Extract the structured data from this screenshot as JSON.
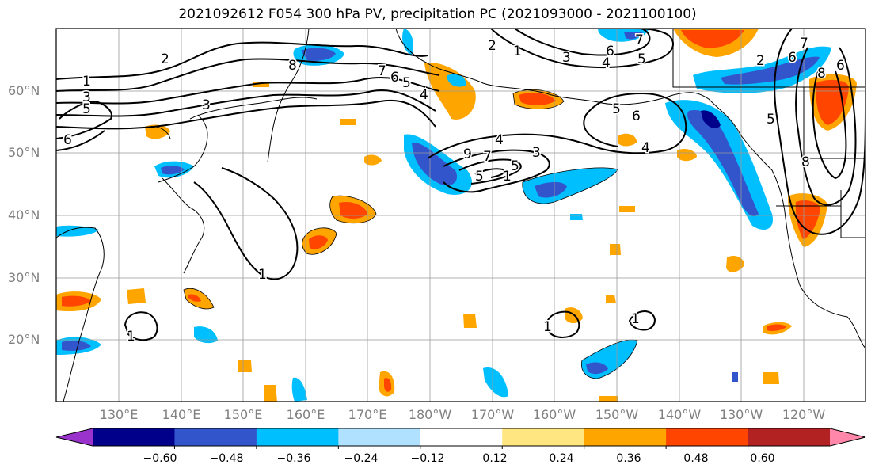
{
  "title": "2021092612 F054 300 hPa PV, precipitation PC (2021093000 - 2021100100)",
  "latitude_labels": [
    "60°N",
    "50°N",
    "40°N",
    "30°N",
    "20°N"
  ],
  "longitude_labels": [
    "130°E",
    "140°E",
    "150°E",
    "160°E",
    "170°E",
    "180°W",
    "170°W",
    "160°W",
    "150°W",
    "140°W",
    "130°W",
    "120°W"
  ],
  "colorbar": {
    "tick_labels": [
      "−0.60",
      "−0.48",
      "−0.36",
      "−0.24",
      "−0.12",
      "0.12",
      "0.24",
      "0.36",
      "0.48",
      "0.60"
    ],
    "colors": [
      "#9933cc",
      "#00008b",
      "#3355cc",
      "#00bfff",
      "#b0e2ff",
      "#ffffff",
      "#ffe680",
      "#ffa500",
      "#ff4500",
      "#b22222",
      "#ff88aa"
    ]
  },
  "contour_labels": [
    "1",
    "2",
    "3",
    "5",
    "6",
    "8",
    "7",
    "6",
    "5",
    "4",
    "2",
    "1",
    "7",
    "3",
    "4",
    "5",
    "6",
    "4",
    "5",
    "6",
    "8",
    "5",
    "2",
    "6",
    "5",
    "4",
    "9",
    "7",
    "5",
    "3",
    "1",
    "1",
    "1",
    "1",
    "1",
    "8",
    "7",
    "6",
    "3"
  ]
}
